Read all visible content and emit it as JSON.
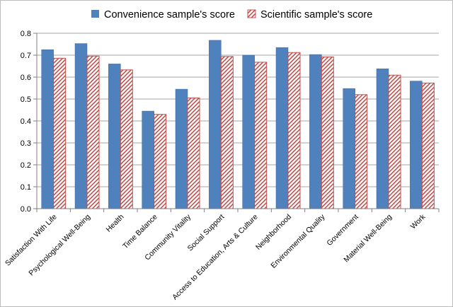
{
  "chart_data": {
    "type": "bar",
    "title": "",
    "xlabel": "",
    "ylabel": "",
    "ylim": [
      0,
      0.8
    ],
    "yticks": [
      "0.0",
      "0.1",
      "0.2",
      "0.3",
      "0.4",
      "0.5",
      "0.6",
      "0.7",
      "0.8"
    ],
    "legend_position": "top",
    "grid": true,
    "colors": {
      "convenience": "#4f81bd",
      "scientific_stripe": "#c0504d",
      "gridline": "#a6a6a6"
    },
    "categories": [
      "Satisfaction With Life",
      "Psychological Well-Being",
      "Health",
      "Time Balance",
      "Community Vitality",
      "Social Support",
      "Access to Education, Arts & Culture",
      "Neighborhood",
      "Environmental Quality",
      "Government",
      "Material Well-Being",
      "Work"
    ],
    "series": [
      {
        "name": "Convenience sample's score",
        "values": [
          0.725,
          0.753,
          0.66,
          0.445,
          0.545,
          0.768,
          0.7,
          0.735,
          0.703,
          0.548,
          0.638,
          0.582
        ]
      },
      {
        "name": "Scientific sample's score",
        "values": [
          0.686,
          0.696,
          0.633,
          0.43,
          0.505,
          0.694,
          0.668,
          0.712,
          0.692,
          0.52,
          0.609,
          0.573
        ]
      }
    ]
  }
}
